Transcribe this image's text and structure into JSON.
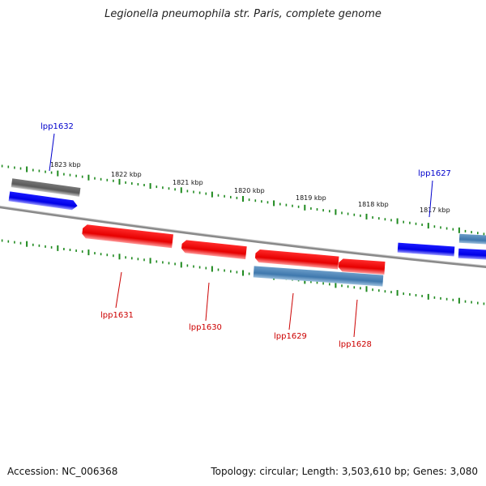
{
  "title": "Legionella pneumophila str. Paris, complete genome",
  "footer": {
    "accession": "Accession: NC_006368",
    "summary": "Topology: circular; Length: 3,503,610 bp; Genes: 3,080"
  },
  "colors": {
    "forward_label": "#0000cc",
    "reverse_label": "#cc0000",
    "tick": "#1f8a1f",
    "backbone": "#8a8a8a"
  },
  "kbp_labels": [
    "1823 kbp",
    "1822 kbp",
    "1821 kbp",
    "1820 kbp",
    "1819 kbp",
    "1818 kbp",
    "1817 kbp"
  ],
  "genes": [
    {
      "name": "lpp1632",
      "strand": "forward"
    },
    {
      "name": "lpp1627",
      "strand": "forward"
    },
    {
      "name": "lpp1631",
      "strand": "reverse"
    },
    {
      "name": "lpp1630",
      "strand": "reverse"
    },
    {
      "name": "lpp1629",
      "strand": "reverse"
    },
    {
      "name": "lpp1628",
      "strand": "reverse"
    }
  ]
}
